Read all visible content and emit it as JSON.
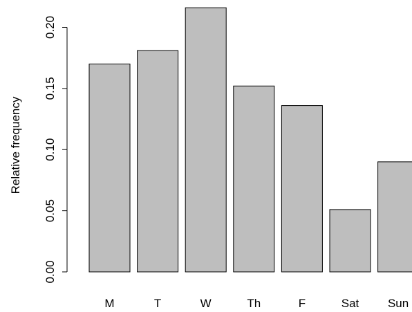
{
  "chart_data": {
    "type": "bar",
    "title": "",
    "xlabel": "",
    "ylabel": "Relative frequency",
    "categories": [
      "M",
      "T",
      "W",
      "Th",
      "F",
      "Sat",
      "Sun"
    ],
    "values": [
      0.17,
      0.181,
      0.216,
      0.152,
      0.136,
      0.051,
      0.09
    ],
    "ylim": [
      0,
      0.22
    ],
    "yticks": [
      0.0,
      0.05,
      0.1,
      0.15,
      0.2
    ],
    "ytick_labels": [
      "0.00",
      "0.05",
      "0.10",
      "0.15",
      "0.20"
    ],
    "grid": false,
    "bar_color": "#bebebe",
    "bar_edge_color": "#000000"
  }
}
